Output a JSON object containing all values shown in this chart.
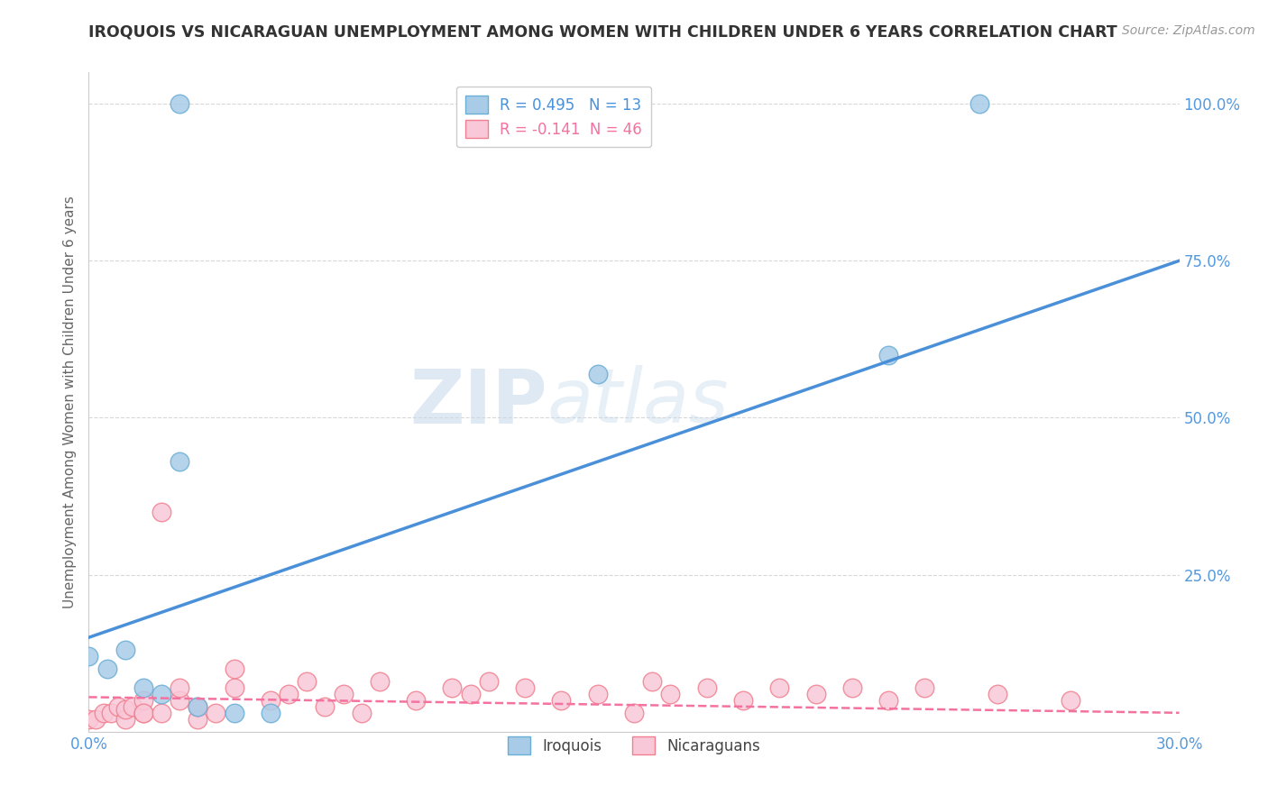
{
  "title": "IROQUOIS VS NICARAGUAN UNEMPLOYMENT AMONG WOMEN WITH CHILDREN UNDER 6 YEARS CORRELATION CHART",
  "source": "Source: ZipAtlas.com",
  "ylabel": "Unemployment Among Women with Children Under 6 years",
  "xlim": [
    0.0,
    0.3
  ],
  "ylim": [
    0.0,
    1.05
  ],
  "xticks": [
    0.0,
    0.05,
    0.1,
    0.15,
    0.2,
    0.25,
    0.3
  ],
  "xticklabels": [
    "0.0%",
    "",
    "",
    "",
    "",
    "",
    "30.0%"
  ],
  "yticks": [
    0.0,
    0.25,
    0.5,
    0.75,
    1.0
  ],
  "yticklabels": [
    "",
    "25.0%",
    "50.0%",
    "75.0%",
    "100.0%"
  ],
  "iroquois_x": [
    0.0,
    0.005,
    0.01,
    0.015,
    0.02,
    0.025,
    0.03,
    0.04,
    0.05,
    0.14,
    0.22,
    0.245,
    0.025
  ],
  "iroquois_y": [
    0.12,
    0.1,
    0.13,
    0.07,
    0.06,
    0.43,
    0.04,
    0.03,
    0.03,
    0.57,
    0.6,
    1.0,
    1.0
  ],
  "nicaraguan_x": [
    0.0,
    0.002,
    0.004,
    0.006,
    0.008,
    0.01,
    0.01,
    0.012,
    0.015,
    0.015,
    0.015,
    0.02,
    0.02,
    0.025,
    0.025,
    0.03,
    0.03,
    0.035,
    0.04,
    0.04,
    0.05,
    0.055,
    0.06,
    0.065,
    0.07,
    0.075,
    0.08,
    0.09,
    0.1,
    0.105,
    0.11,
    0.12,
    0.13,
    0.14,
    0.15,
    0.155,
    0.16,
    0.17,
    0.18,
    0.19,
    0.2,
    0.21,
    0.22,
    0.23,
    0.25,
    0.27
  ],
  "nicaraguan_y": [
    0.02,
    0.02,
    0.03,
    0.03,
    0.04,
    0.02,
    0.035,
    0.04,
    0.03,
    0.05,
    0.03,
    0.35,
    0.03,
    0.05,
    0.07,
    0.02,
    0.04,
    0.03,
    0.07,
    0.1,
    0.05,
    0.06,
    0.08,
    0.04,
    0.06,
    0.03,
    0.08,
    0.05,
    0.07,
    0.06,
    0.08,
    0.07,
    0.05,
    0.06,
    0.03,
    0.08,
    0.06,
    0.07,
    0.05,
    0.07,
    0.06,
    0.07,
    0.05,
    0.07,
    0.06,
    0.05
  ],
  "iroquois_line_x0": 0.0,
  "iroquois_line_y0": 0.15,
  "iroquois_line_x1": 0.3,
  "iroquois_line_y1": 0.75,
  "nicaraguan_line_x0": 0.0,
  "nicaraguan_line_y0": 0.055,
  "nicaraguan_line_x1": 0.3,
  "nicaraguan_line_y1": 0.03,
  "iroquois_color": "#a8cce8",
  "iroquois_edge_color": "#6aaed6",
  "nicaraguan_color": "#f9c8d8",
  "nicaraguan_edge_color": "#f08090",
  "iroquois_line_color": "#4a90d9",
  "nicaraguan_line_color": "#f472a0",
  "R_iroquois": 0.495,
  "N_iroquois": 13,
  "R_nicaraguan": -0.141,
  "N_nicaraguan": 46,
  "watermark_zip": "ZIP",
  "watermark_atlas": "atlas",
  "background_color": "#ffffff",
  "grid_color": "#d8d8d8",
  "tick_color": "#5599dd",
  "axis_color": "#cccccc",
  "title_color": "#333333",
  "source_color": "#999999",
  "ylabel_color": "#666666"
}
